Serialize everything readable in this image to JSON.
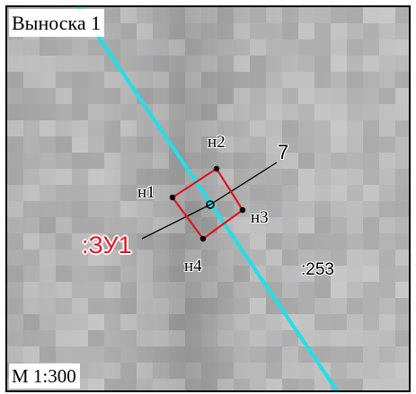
{
  "title": "Выноска 1",
  "scale": "М 1:300",
  "parcel": {
    "label": ":ЗУ1",
    "vertices": [
      "н1",
      "н2",
      "н3",
      "н4"
    ]
  },
  "neighbor_label": ":253",
  "point_label": "7",
  "colors": {
    "boundary_line": "#1fe0e8",
    "parcel_outline": "#e0141e",
    "parcel_label": "#e0141e",
    "background": "#b9b9b9"
  },
  "icons": [
    "vertex-point-icon",
    "survey-point-circle-icon"
  ]
}
